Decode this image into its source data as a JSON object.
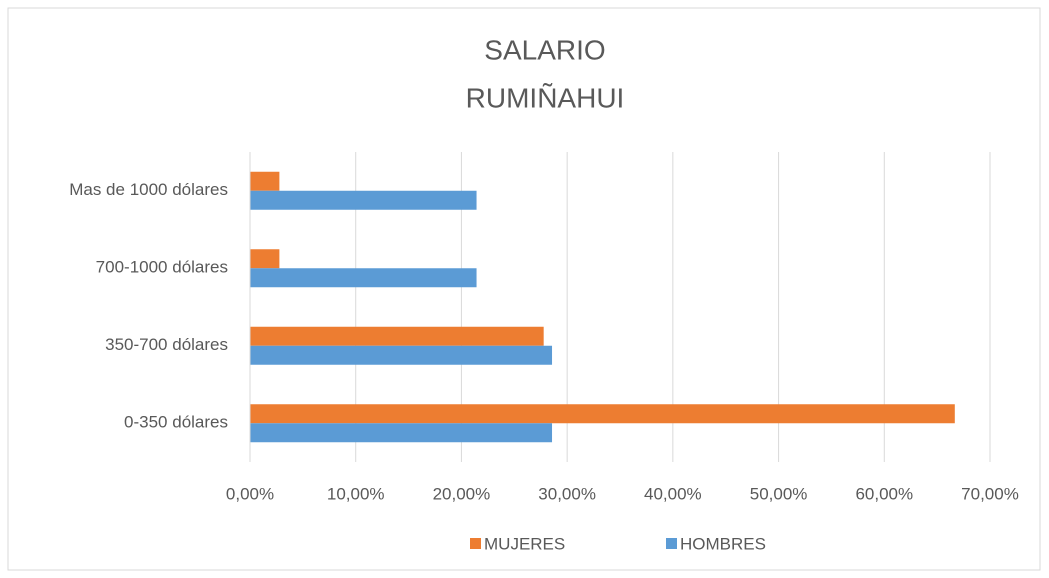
{
  "chart_data": {
    "type": "barh",
    "title": [
      "SALARIO",
      "RUMIÑAHUI"
    ],
    "categories": [
      "0-350 dólares",
      "350-700 dólares",
      "700-1000 dólares",
      "Mas de 1000 dólares"
    ],
    "series": [
      {
        "name": "MUJERES",
        "color": "#ed7d31",
        "values": [
          66.67,
          27.78,
          2.78,
          2.78
        ]
      },
      {
        "name": "HOMBRES",
        "color": "#5b9bd5",
        "values": [
          28.57,
          28.57,
          21.43,
          21.43
        ]
      }
    ],
    "xlim": [
      0,
      70
    ],
    "xticks": [
      {
        "value": 0,
        "label": "0,00%"
      },
      {
        "value": 10,
        "label": "10,00%"
      },
      {
        "value": 20,
        "label": "20,00%"
      },
      {
        "value": 30,
        "label": "30,00%"
      },
      {
        "value": 40,
        "label": "40,00%"
      },
      {
        "value": 50,
        "label": "50,00%"
      },
      {
        "value": 60,
        "label": "60,00%"
      },
      {
        "value": 70,
        "label": "70,00%"
      }
    ],
    "grid": true,
    "legend": "bottom"
  }
}
